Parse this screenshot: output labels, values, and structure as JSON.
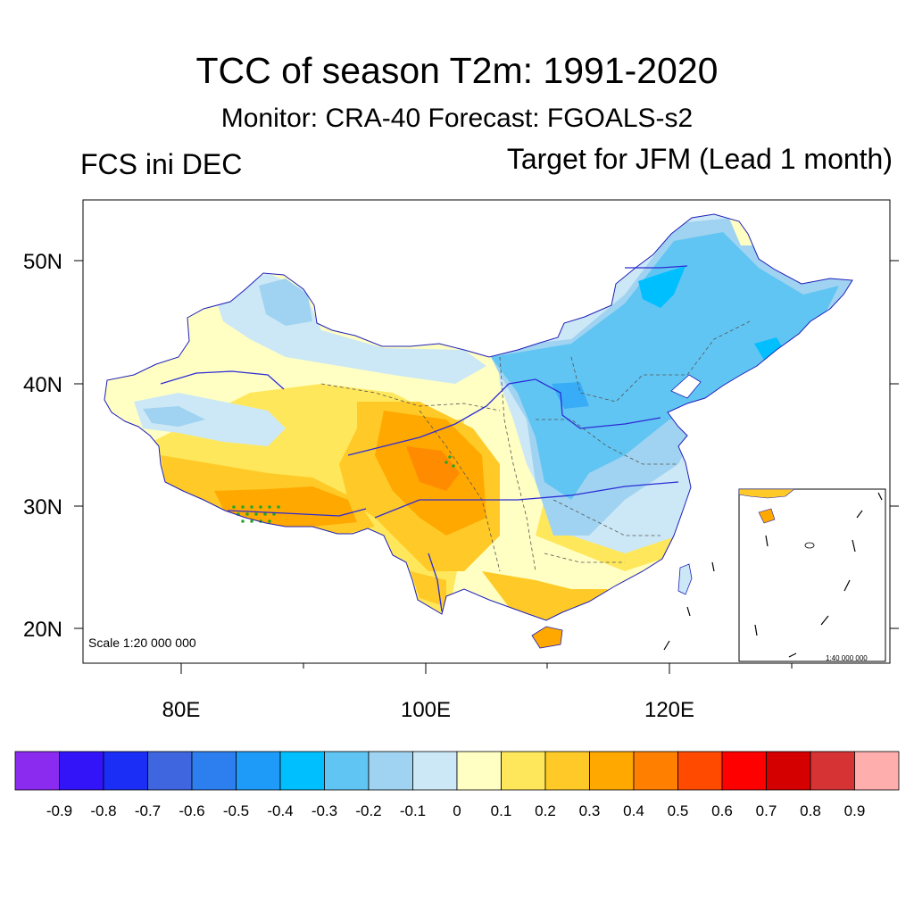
{
  "header": {
    "title": "TCC of season T2m: 1991-2020",
    "subtitle": "Monitor: CRA-40   Forecast: FGOALS-s2",
    "left_label": "FCS ini DEC",
    "right_label": "Target for JFM (Lead 1 month)"
  },
  "map": {
    "scale_label": "Scale 1:20 000 000",
    "inset_scale_label": "1:40 000 000",
    "lat_labels": [
      "50N",
      "40N",
      "30N",
      "20N"
    ],
    "lon_labels": [
      "80E",
      "100E",
      "120E"
    ]
  },
  "colorbar": {
    "colors": [
      "#8b2bf0",
      "#3313f7",
      "#1b2ef5",
      "#3f66df",
      "#2d7ff0",
      "#1e9bf8",
      "#00bfff",
      "#60c5f2",
      "#a0d3f1",
      "#cce8f6",
      "#ffffc4",
      "#ffe75c",
      "#ffca27",
      "#ffa800",
      "#ff8000",
      "#ff4a00",
      "#fe0000",
      "#d40000",
      "#d63434",
      "#ffaeae"
    ],
    "labels": [
      "-0.9",
      "-0.8",
      "-0.7",
      "-0.6",
      "-0.5",
      "-0.4",
      "-0.3",
      "-0.2",
      "-0.1",
      "0",
      "0.1",
      "0.2",
      "0.3",
      "0.4",
      "0.5",
      "0.6",
      "0.7",
      "0.8",
      "0.9"
    ]
  }
}
